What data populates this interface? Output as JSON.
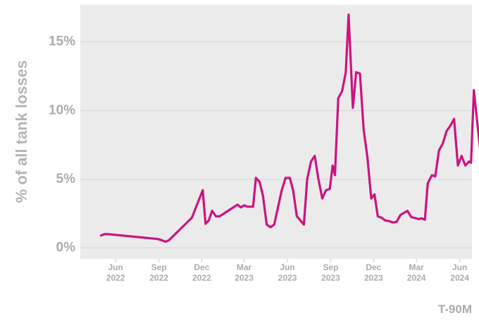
{
  "chart_data": {
    "type": "line",
    "ylabel": "% of all tank losses",
    "caption": "T-90M",
    "colors": {
      "line": "#cc1380",
      "panel": "#ebebeb",
      "grid": "#d5d5d5",
      "text": "#ababab"
    },
    "ylim": [
      -0.8,
      17.7
    ],
    "xlim": [
      "2022-03-18",
      "2024-06-27"
    ],
    "y_ticks": [
      {
        "value": 0,
        "label": "0%"
      },
      {
        "value": 5,
        "label": "5%"
      },
      {
        "value": 10,
        "label": "10%"
      },
      {
        "value": 15,
        "label": "15%"
      }
    ],
    "x_ticks": [
      {
        "date": "2022-06-01",
        "month": "Jun",
        "year": "2022"
      },
      {
        "date": "2022-09-01",
        "month": "Sep",
        "year": "2022"
      },
      {
        "date": "2022-12-01",
        "month": "Dec",
        "year": "2022"
      },
      {
        "date": "2023-03-01",
        "month": "Mar",
        "year": "2023"
      },
      {
        "date": "2023-06-01",
        "month": "Jun",
        "year": "2023"
      },
      {
        "date": "2023-09-01",
        "month": "Sep",
        "year": "2023"
      },
      {
        "date": "2023-12-01",
        "month": "Dec",
        "year": "2023"
      },
      {
        "date": "2024-03-01",
        "month": "Mar",
        "year": "2024"
      },
      {
        "date": "2024-06-01",
        "month": "Jun",
        "year": "2024"
      }
    ],
    "series": [
      {
        "points": [
          [
            "2022-05-01",
            0.9
          ],
          [
            "2022-05-08",
            1.0
          ],
          [
            "2022-05-16",
            1.0
          ],
          [
            "2022-08-29",
            0.65
          ],
          [
            "2022-09-08",
            0.55
          ],
          [
            "2022-09-15",
            0.45
          ],
          [
            "2022-09-22",
            0.55
          ],
          [
            "2022-11-10",
            2.2
          ],
          [
            "2022-11-25",
            3.5
          ],
          [
            "2022-12-03",
            4.2
          ],
          [
            "2022-12-09",
            1.75
          ],
          [
            "2022-12-16",
            2.0
          ],
          [
            "2022-12-23",
            2.7
          ],
          [
            "2022-12-31",
            2.3
          ],
          [
            "2023-01-08",
            2.3
          ],
          [
            "2023-02-15",
            3.15
          ],
          [
            "2023-02-22",
            2.95
          ],
          [
            "2023-03-01",
            3.1
          ],
          [
            "2023-03-08",
            3.0
          ],
          [
            "2023-03-15",
            3.0
          ],
          [
            "2023-03-20",
            3.0
          ],
          [
            "2023-03-26",
            5.1
          ],
          [
            "2023-04-03",
            4.8
          ],
          [
            "2023-04-10",
            3.8
          ],
          [
            "2023-04-18",
            1.7
          ],
          [
            "2023-04-26",
            1.5
          ],
          [
            "2023-05-04",
            1.7
          ],
          [
            "2023-05-20",
            4.2
          ],
          [
            "2023-05-28",
            5.1
          ],
          [
            "2023-06-06",
            5.1
          ],
          [
            "2023-06-13",
            4.2
          ],
          [
            "2023-06-21",
            2.3
          ],
          [
            "2023-07-06",
            1.7
          ],
          [
            "2023-07-13",
            5.0
          ],
          [
            "2023-07-21",
            6.3
          ],
          [
            "2023-07-29",
            6.7
          ],
          [
            "2023-08-06",
            5.0
          ],
          [
            "2023-08-14",
            3.6
          ],
          [
            "2023-08-22",
            4.2
          ],
          [
            "2023-08-30",
            4.3
          ],
          [
            "2023-09-05",
            6.0
          ],
          [
            "2023-09-10",
            5.3
          ],
          [
            "2023-09-17",
            10.9
          ],
          [
            "2023-09-25",
            11.4
          ],
          [
            "2023-10-03",
            12.8
          ],
          [
            "2023-10-09",
            17.0
          ],
          [
            "2023-10-18",
            10.2
          ],
          [
            "2023-10-25",
            12.8
          ],
          [
            "2023-11-02",
            12.7
          ],
          [
            "2023-11-10",
            8.6
          ],
          [
            "2023-11-18",
            6.6
          ],
          [
            "2023-11-26",
            3.6
          ],
          [
            "2023-12-03",
            3.9
          ],
          [
            "2023-12-10",
            2.3
          ],
          [
            "2023-12-18",
            2.2
          ],
          [
            "2023-12-26",
            2.0
          ],
          [
            "2024-01-03",
            1.95
          ],
          [
            "2024-01-11",
            1.85
          ],
          [
            "2024-01-19",
            1.9
          ],
          [
            "2024-01-27",
            2.4
          ],
          [
            "2024-02-11",
            2.7
          ],
          [
            "2024-02-19",
            2.25
          ],
          [
            "2024-03-06",
            2.1
          ],
          [
            "2024-03-12",
            2.15
          ],
          [
            "2024-03-19",
            2.05
          ],
          [
            "2024-03-25",
            4.7
          ],
          [
            "2024-04-03",
            5.3
          ],
          [
            "2024-04-10",
            5.2
          ],
          [
            "2024-04-18",
            7.1
          ],
          [
            "2024-04-26",
            7.6
          ],
          [
            "2024-05-04",
            8.5
          ],
          [
            "2024-05-12",
            8.9
          ],
          [
            "2024-05-20",
            9.4
          ],
          [
            "2024-05-28",
            6.0
          ],
          [
            "2024-06-05",
            6.7
          ],
          [
            "2024-06-13",
            6.0
          ],
          [
            "2024-06-21",
            6.3
          ],
          [
            "2024-06-25",
            6.2
          ],
          [
            "2024-07-01",
            11.5
          ],
          [
            "2024-07-09",
            8.9
          ],
          [
            "2024-07-15",
            7.0
          ]
        ]
      }
    ]
  }
}
